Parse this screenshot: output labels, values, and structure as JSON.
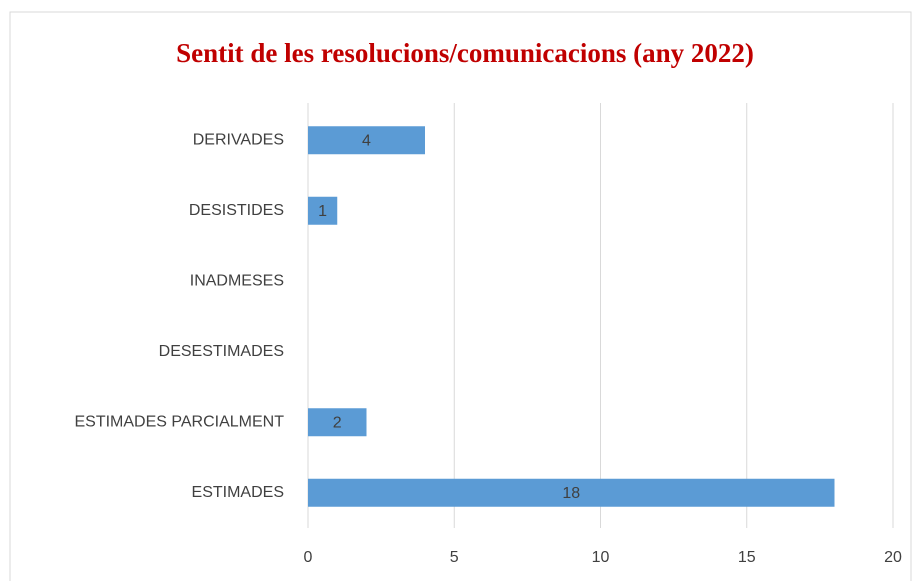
{
  "chart_data": {
    "type": "bar",
    "orientation": "horizontal",
    "title": "Sentit de les resolucions/comunicacions (any 2022)",
    "categories": [
      "DERIVADES",
      "DESISTIDES",
      "INADMESES",
      "DESESTIMADES",
      "ESTIMADES PARCIALMENT",
      "ESTIMADES"
    ],
    "values": [
      4,
      1,
      0,
      0,
      2,
      18
    ],
    "value_labels": [
      "4",
      "1",
      null,
      null,
      "2",
      "18"
    ],
    "color": "#5b9bd5",
    "xlim": [
      0,
      20
    ],
    "xticks": [
      0,
      5,
      10,
      15,
      20
    ],
    "grid": true
  }
}
